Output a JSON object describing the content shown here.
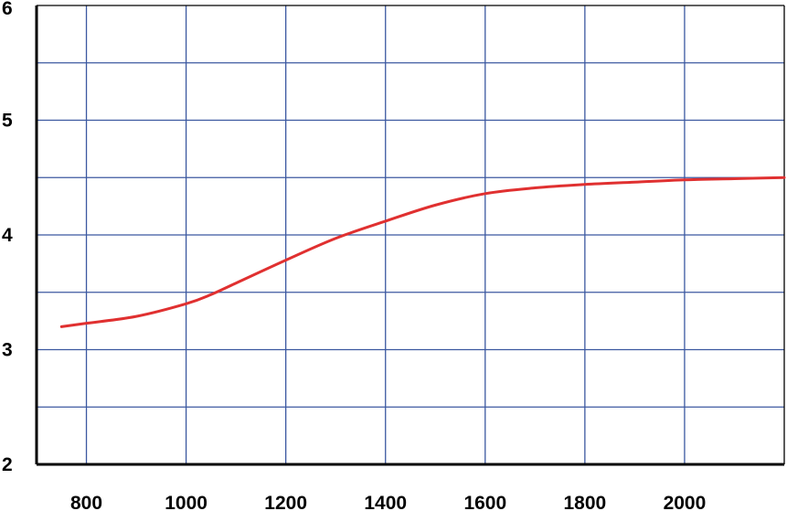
{
  "chart_data": {
    "type": "line",
    "title": "",
    "xlabel": "",
    "ylabel": "",
    "xlim": [
      700,
      2200
    ],
    "ylim": [
      2,
      6
    ],
    "x_ticks": [
      800,
      1000,
      1200,
      1400,
      1600,
      1800,
      2000
    ],
    "x_tick_labels": [
      "800",
      "1000",
      "1200",
      "1400",
      "1600",
      "1800",
      "2000"
    ],
    "y_ticks": [
      2,
      3,
      4,
      5,
      6
    ],
    "y_tick_labels": [
      "2",
      "3",
      "4",
      "5",
      "6"
    ],
    "x_gridlines": [
      800,
      1000,
      1200,
      1400,
      1600,
      1800,
      2000
    ],
    "y_gridlines": [
      2.5,
      3,
      3.5,
      4,
      4.5,
      5,
      5.5
    ],
    "grid": true,
    "legend": "none",
    "colors": {
      "line": "#e03030",
      "grid": "#3b58a0",
      "axis": "#000000"
    },
    "series": [
      {
        "x": [
          750,
          800,
          900,
          1000,
          1050,
          1100,
          1200,
          1300,
          1400,
          1500,
          1600,
          1700,
          1800,
          1900,
          2000,
          2100,
          2200
        ],
        "y": [
          3.2,
          3.23,
          3.29,
          3.4,
          3.48,
          3.58,
          3.78,
          3.97,
          4.12,
          4.26,
          4.36,
          4.41,
          4.44,
          4.46,
          4.48,
          4.49,
          4.5
        ]
      }
    ]
  }
}
